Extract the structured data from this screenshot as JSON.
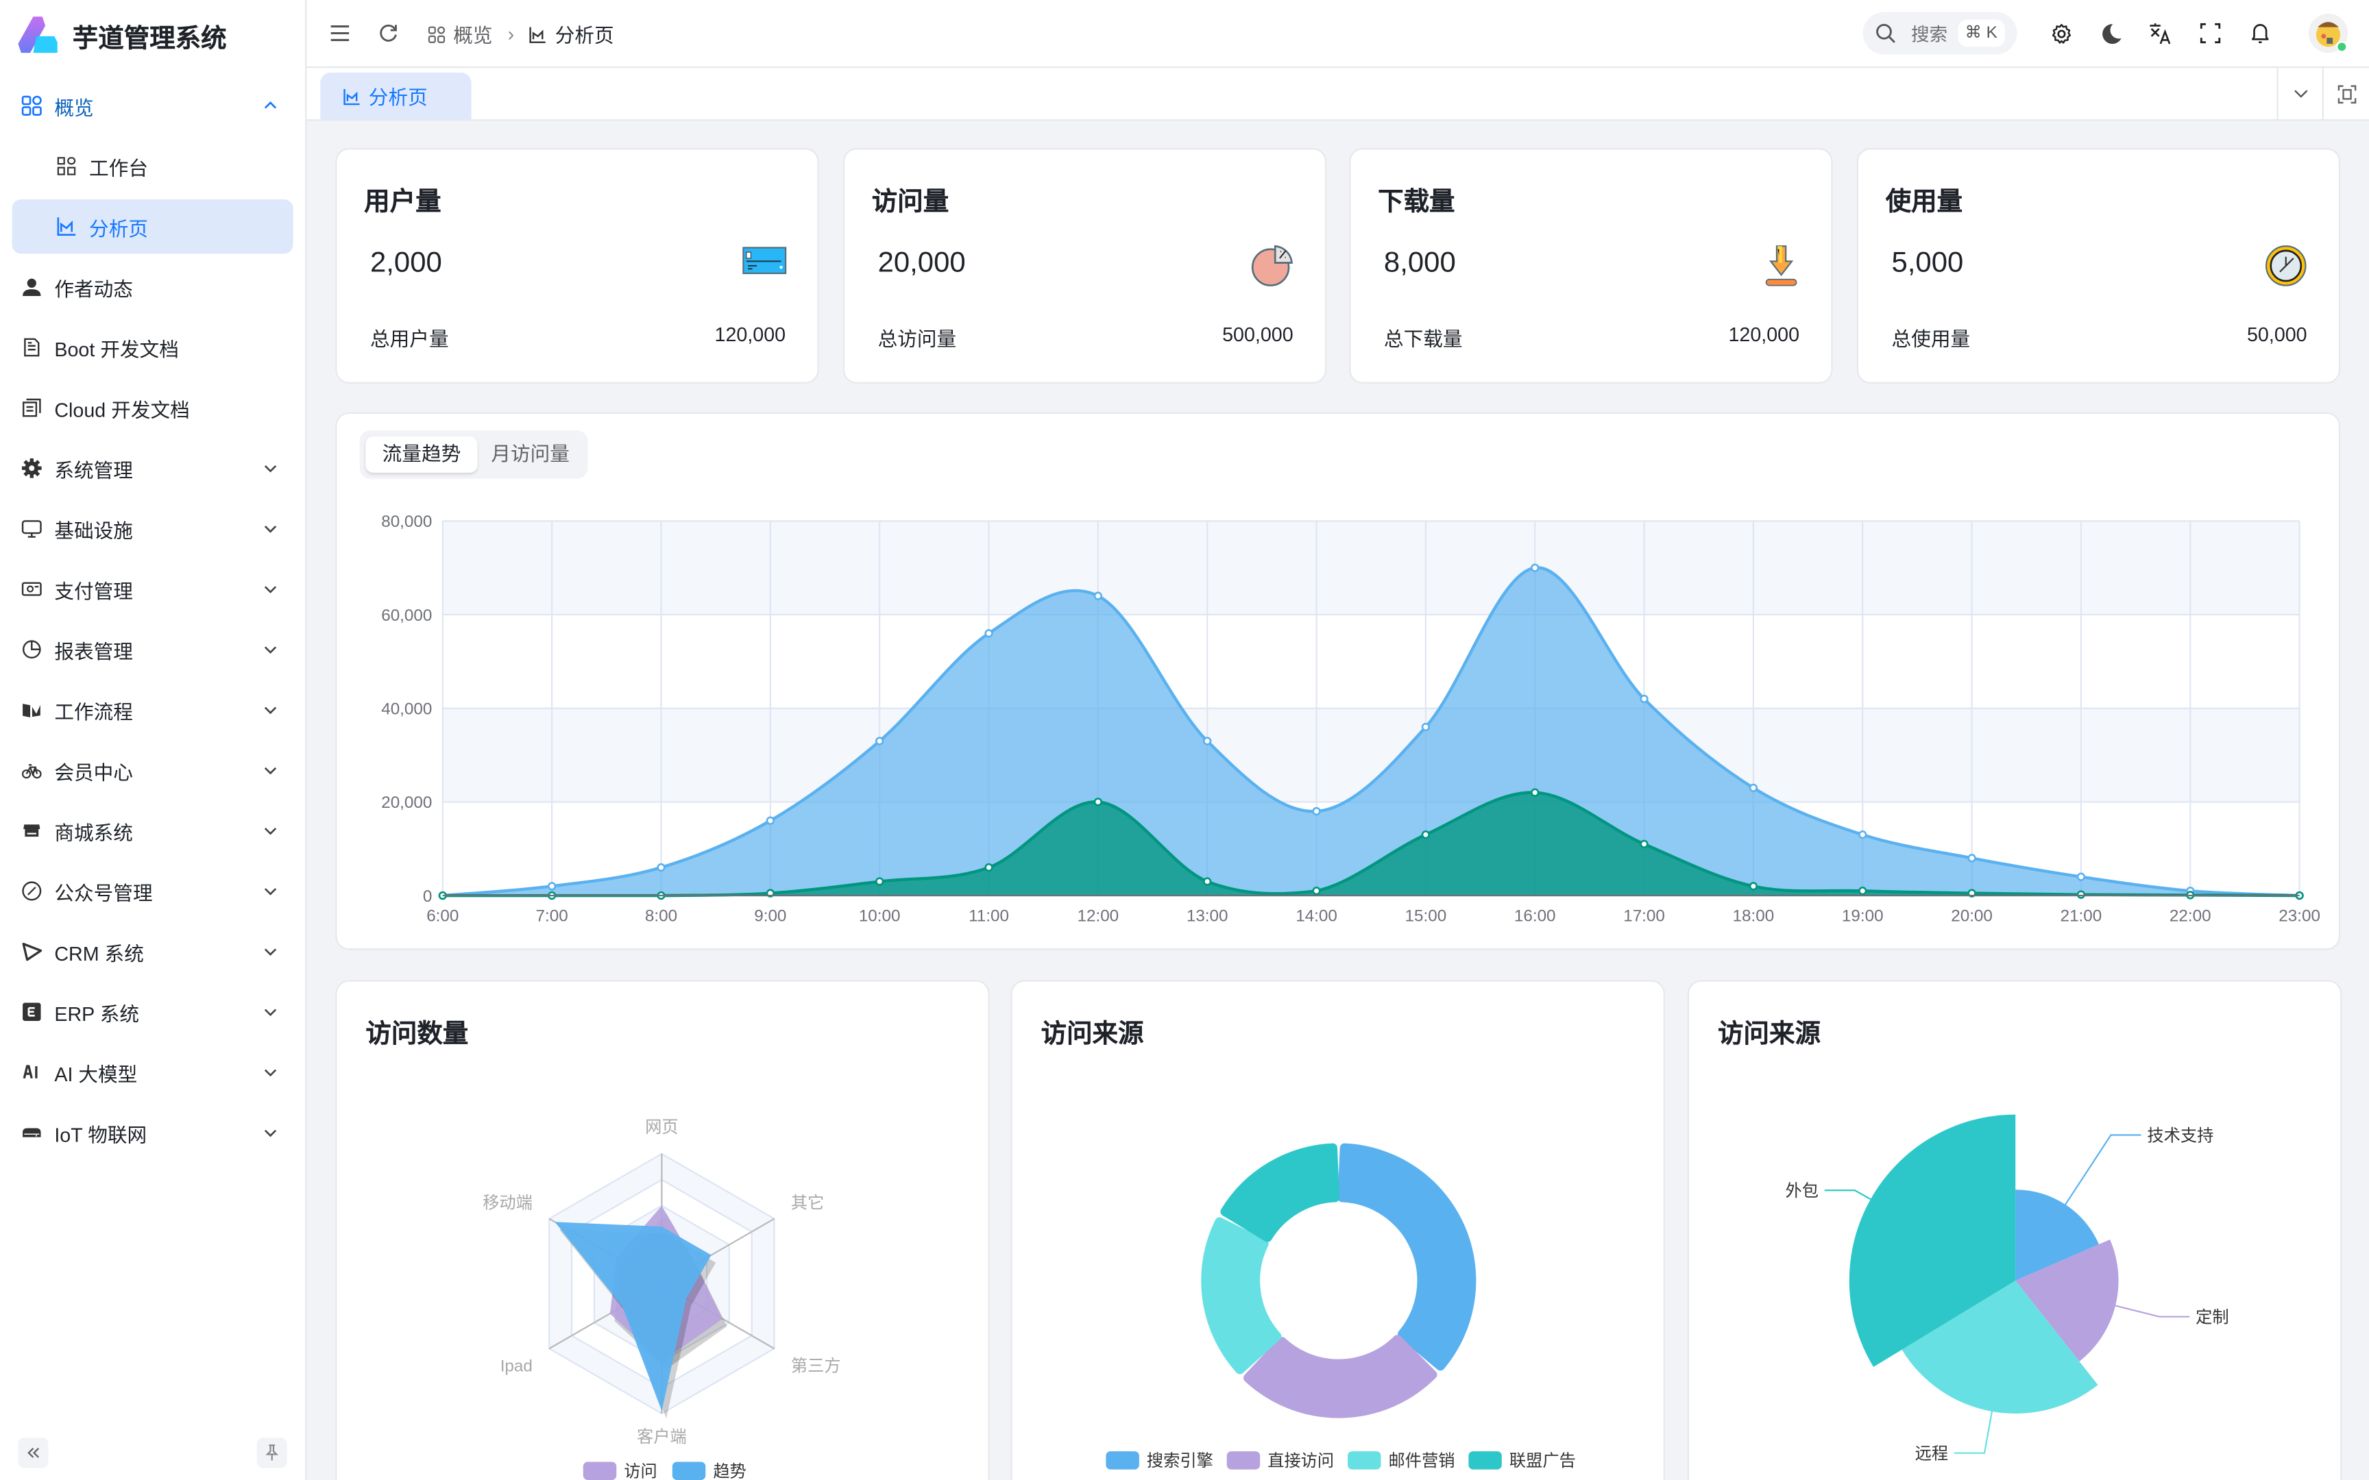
{
  "app": {
    "title": "芋道管理系统"
  },
  "sidebar": {
    "items": [
      {
        "label": "概览",
        "icon": "dashboard-icon",
        "state": "open",
        "chevron": "up"
      },
      {
        "label": "工作台",
        "icon": "workspace-icon",
        "sub": true
      },
      {
        "label": "分析页",
        "icon": "analytics-icon",
        "sub": true,
        "active": true
      },
      {
        "label": "作者动态",
        "icon": "user-icon"
      },
      {
        "label": "Boot 开发文档",
        "icon": "document-icon"
      },
      {
        "label": "Cloud 开发文档",
        "icon": "documents-icon"
      },
      {
        "label": "系统管理",
        "icon": "gear-icon",
        "chevron": "down"
      },
      {
        "label": "基础设施",
        "icon": "monitor-icon",
        "chevron": "down"
      },
      {
        "label": "支付管理",
        "icon": "payment-icon",
        "chevron": "down"
      },
      {
        "label": "报表管理",
        "icon": "pie-chart-icon",
        "chevron": "down"
      },
      {
        "label": "工作流程",
        "icon": "workflow-icon",
        "chevron": "down"
      },
      {
        "label": "会员中心",
        "icon": "bicycle-icon",
        "chevron": "down"
      },
      {
        "label": "商城系统",
        "icon": "shop-icon",
        "chevron": "down"
      },
      {
        "label": "公众号管理",
        "icon": "compass-icon",
        "chevron": "down"
      },
      {
        "label": "CRM 系统",
        "icon": "crm-icon",
        "chevron": "down"
      },
      {
        "label": "ERP 系统",
        "icon": "erp-icon",
        "chevron": "down"
      },
      {
        "label": "AI 大模型",
        "icon": "ai-icon",
        "chevron": "down"
      },
      {
        "label": "IoT 物联网",
        "icon": "iot-icon",
        "chevron": "down"
      }
    ]
  },
  "header": {
    "breadcrumb": [
      {
        "label": "概览",
        "icon": "dashboard-icon"
      },
      {
        "label": "分析页",
        "icon": "analytics-icon"
      }
    ],
    "search_placeholder": "搜索",
    "search_shortcut": "⌘ K"
  },
  "tabs": [
    {
      "label": "分析页",
      "icon": "analytics-icon",
      "active": true
    }
  ],
  "stats": [
    {
      "title": "用户量",
      "value": "2,000",
      "footer_label": "总用户量",
      "footer_value": "120,000",
      "icon": "credit-card-icon"
    },
    {
      "title": "访问量",
      "value": "20,000",
      "footer_label": "总访问量",
      "footer_value": "500,000",
      "icon": "pie-chart-icon"
    },
    {
      "title": "下载量",
      "value": "8,000",
      "footer_label": "总下载量",
      "footer_value": "120,000",
      "icon": "download-icon"
    },
    {
      "title": "使用量",
      "value": "5,000",
      "footer_label": "总使用量",
      "footer_value": "50,000",
      "icon": "clock-icon"
    }
  ],
  "trend": {
    "tabs": [
      "流量趋势",
      "月访问量"
    ],
    "active_tab": 0
  },
  "panels": {
    "radar_title": "访问数量",
    "donut_title": "访问来源",
    "rose_title": "访问来源"
  },
  "chart_data": [
    {
      "type": "area",
      "x": [
        "6:00",
        "7:00",
        "8:00",
        "9:00",
        "10:00",
        "11:00",
        "12:00",
        "13:00",
        "14:00",
        "15:00",
        "16:00",
        "17:00",
        "18:00",
        "19:00",
        "20:00",
        "21:00",
        "22:00",
        "23:00"
      ],
      "yticks": [
        "0",
        "20,000",
        "40,000",
        "60,000",
        "80,000"
      ],
      "ylim": [
        0,
        80000
      ],
      "grid": true,
      "smooth": true,
      "series": [
        {
          "values": [
            0,
            2000,
            6000,
            16000,
            33000,
            56000,
            64000,
            33000,
            18000,
            36000,
            70000,
            42000,
            23000,
            13000,
            8000,
            4000,
            1000,
            0
          ],
          "color": "#5ab1ef"
        },
        {
          "values": [
            0,
            0,
            0,
            500,
            3000,
            6000,
            20000,
            3000,
            1000,
            13000,
            22000,
            11000,
            2000,
            1000,
            500,
            200,
            100,
            0
          ],
          "color": "#019680"
        }
      ]
    },
    {
      "type": "radar",
      "indicators": [
        "网页",
        "移动端",
        "Ipad",
        "客户端",
        "第三方",
        "其它"
      ],
      "max": 100,
      "legend": "bottom",
      "series": [
        {
          "name": "访问",
          "values": [
            60,
            40,
            46,
            60,
            54,
            30
          ],
          "color": "#b6a2de"
        },
        {
          "name": "趋势",
          "values": [
            44,
            95,
            35,
            98,
            22,
            44
          ],
          "color": "#5ab1ef"
        }
      ]
    },
    {
      "type": "pie",
      "variant": "donut",
      "legend": "bottom",
      "slices": [
        {
          "name": "搜索引擎",
          "value": 1048,
          "color": "#5ab1ef"
        },
        {
          "name": "直接访问",
          "value": 735,
          "color": "#b6a2de"
        },
        {
          "name": "邮件营销",
          "value": 580,
          "color": "#67e0e3"
        },
        {
          "name": "联盟广告",
          "value": 484,
          "color": "#2ec7c9"
        }
      ]
    },
    {
      "type": "pie",
      "variant": "rose",
      "slices": [
        {
          "name": "技术支持",
          "value": 274,
          "color": "#5ab1ef"
        },
        {
          "name": "定制",
          "value": 310,
          "color": "#b6a2de"
        },
        {
          "name": "远程",
          "value": 400,
          "color": "#67e0e3"
        },
        {
          "name": "外包",
          "value": 500,
          "color": "#2ec7c9"
        }
      ]
    }
  ]
}
